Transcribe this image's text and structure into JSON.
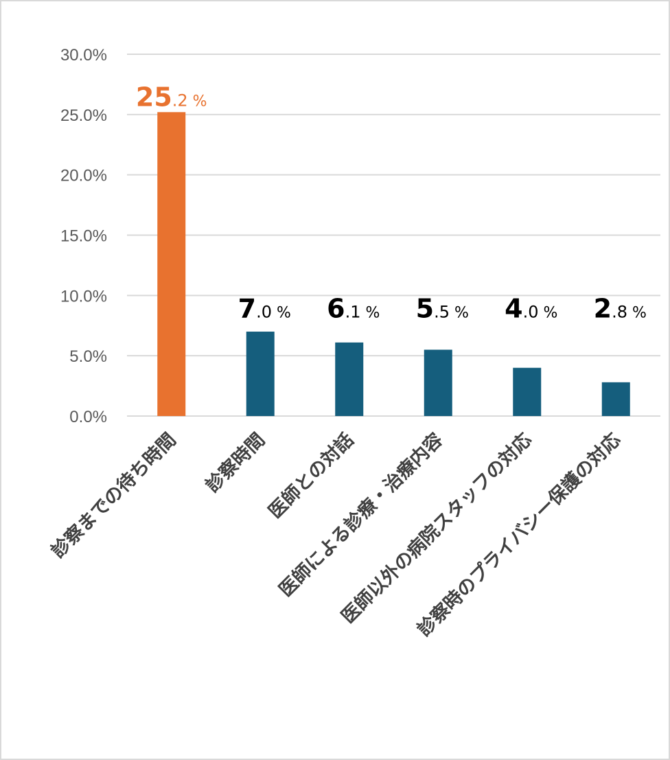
{
  "chart_data": {
    "type": "bar",
    "title": "",
    "xlabel": "",
    "ylabel": "",
    "categories": [
      "診察までの待ち時間",
      "診察時間",
      "医師との対話",
      "医師による診療・治療内容",
      "医師以外の病院スタッフの対応",
      "診察時のプライバシー保護の対応"
    ],
    "values": [
      25.2,
      7.0,
      6.1,
      5.5,
      4.0,
      2.8
    ],
    "data_labels": [
      {
        "int": "25",
        "dec": ".2",
        "pct": " %"
      },
      {
        "int": "7",
        "dec": ".0",
        "pct": " %"
      },
      {
        "int": "6",
        "dec": ".1",
        "pct": " %"
      },
      {
        "int": "5",
        "dec": ".5",
        "pct": " %"
      },
      {
        "int": "4",
        "dec": ".0",
        "pct": " %"
      },
      {
        "int": "2",
        "dec": ".8",
        "pct": " %"
      }
    ],
    "yticks": [
      "0.0%",
      "5.0%",
      "10.0%",
      "15.0%",
      "20.0%",
      "25.0%",
      "30.0%"
    ],
    "ytick_values": [
      0,
      5,
      10,
      15,
      20,
      25,
      30
    ],
    "ylim": [
      0,
      30
    ],
    "grid": true,
    "legend": "none",
    "colors": {
      "highlight_bar": "#e8722f",
      "bar": "#155e7d",
      "highlight_label": "#e8722f",
      "label": "#000000",
      "grid": "#d9d9d9",
      "tick_text": "#595959",
      "category_text": "#404040"
    },
    "highlight_index": 0
  }
}
